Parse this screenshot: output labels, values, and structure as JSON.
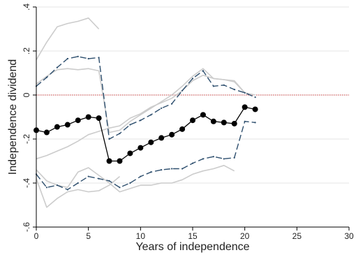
{
  "chart_data": {
    "type": "line",
    "title": "",
    "xlabel": "Years of independence",
    "ylabel": "Independence dividend",
    "xlim": [
      0,
      30
    ],
    "ylim": [
      -0.6,
      0.4
    ],
    "x_ticks": [
      0,
      5,
      10,
      15,
      20,
      25,
      30
    ],
    "y_ticks": [
      -0.6,
      -0.4,
      -0.2,
      0,
      0.2,
      0.4
    ],
    "x_tick_labels": [
      "0",
      "5",
      "10",
      "15",
      "20",
      "25",
      "30"
    ],
    "y_tick_labels": [
      "-.6",
      "-.4",
      "-.2",
      "0",
      ".2",
      ".4"
    ],
    "grid": true,
    "reference_line": {
      "y": 0,
      "color": "#d04040",
      "style": "dotted"
    },
    "series": [
      {
        "role": "point_estimate",
        "style": "solid-markers",
        "color": "#000000",
        "x": [
          0,
          1,
          2,
          3,
          4,
          5,
          6,
          7,
          8,
          9,
          10,
          11,
          12,
          13,
          14,
          15,
          16,
          17,
          18,
          19,
          20,
          21
        ],
        "y": [
          -0.16,
          -0.17,
          -0.145,
          -0.135,
          -0.115,
          -0.1,
          -0.105,
          -0.3,
          -0.3,
          -0.265,
          -0.24,
          -0.215,
          -0.195,
          -0.18,
          -0.155,
          -0.115,
          -0.09,
          -0.12,
          -0.125,
          -0.13,
          -0.055,
          -0.065
        ]
      },
      {
        "role": "upper_ci",
        "style": "dashed",
        "color": "#2e4f6e",
        "x": [
          0,
          1,
          2,
          3,
          4,
          5,
          6,
          7,
          8,
          9,
          10,
          11,
          12,
          13,
          14,
          15,
          16,
          17,
          18,
          19,
          20,
          21
        ],
        "y": [
          0.04,
          0.08,
          0.125,
          0.165,
          0.175,
          0.165,
          0.17,
          -0.2,
          -0.175,
          -0.135,
          -0.115,
          -0.09,
          -0.06,
          -0.04,
          0.02,
          0.075,
          0.11,
          0.04,
          0.045,
          0.025,
          0.01,
          -0.01
        ]
      },
      {
        "role": "lower_ci",
        "style": "dashed",
        "color": "#2e4f6e",
        "x": [
          0,
          1,
          2,
          3,
          4,
          5,
          6,
          7,
          8,
          9,
          10,
          11,
          12,
          13,
          14,
          15,
          16,
          17,
          18,
          19,
          20,
          21
        ],
        "y": [
          -0.36,
          -0.42,
          -0.41,
          -0.43,
          -0.4,
          -0.37,
          -0.38,
          -0.39,
          -0.42,
          -0.4,
          -0.37,
          -0.35,
          -0.34,
          -0.335,
          -0.335,
          -0.31,
          -0.29,
          -0.28,
          -0.29,
          -0.285,
          -0.12,
          -0.125
        ]
      },
      {
        "role": "background_upper_1",
        "style": "solid-light",
        "color": "#cccccc",
        "x": [
          0,
          1,
          2,
          3,
          4,
          5,
          6
        ],
        "y": [
          0.16,
          0.24,
          0.31,
          0.325,
          0.335,
          0.35,
          0.3
        ]
      },
      {
        "role": "background_upper_2",
        "style": "solid-light",
        "color": "#cccccc",
        "x": [
          0,
          1,
          2,
          3,
          4,
          5,
          6,
          7,
          8,
          9,
          10,
          11,
          12,
          13,
          14,
          15,
          16,
          17,
          18,
          19,
          20,
          21
        ],
        "y": [
          0.05,
          0.085,
          0.115,
          0.12,
          0.115,
          0.12,
          0.11,
          -0.17,
          -0.16,
          -0.12,
          -0.09,
          -0.06,
          -0.03,
          0,
          0.04,
          0.085,
          0.12,
          0.075,
          0.07,
          0.065,
          0.01,
          0.0
        ]
      },
      {
        "role": "background_middle",
        "style": "solid-light",
        "color": "#cccccc",
        "x": [
          0,
          1,
          2,
          3,
          4,
          5,
          6,
          7,
          8,
          9,
          10,
          11,
          12,
          13,
          14,
          15,
          16,
          17,
          18,
          19,
          20
        ],
        "y": [
          -0.29,
          -0.275,
          -0.255,
          -0.235,
          -0.21,
          -0.18,
          -0.165,
          -0.15,
          -0.14,
          -0.105,
          -0.085,
          -0.055,
          -0.035,
          -0.015,
          0.02,
          0.065,
          0.09,
          0.075,
          0.07,
          0.06,
          0.01
        ]
      },
      {
        "role": "background_lower_1",
        "style": "solid-light",
        "color": "#cccccc",
        "x": [
          0,
          1,
          2,
          3,
          4,
          5,
          6,
          7,
          8,
          9,
          10,
          11,
          12,
          13,
          14,
          15,
          16,
          17,
          18,
          19
        ],
        "y": [
          -0.34,
          -0.39,
          -0.41,
          -0.42,
          -0.35,
          -0.33,
          -0.365,
          -0.4,
          -0.44,
          -0.425,
          -0.41,
          -0.41,
          -0.4,
          -0.4,
          -0.385,
          -0.36,
          -0.345,
          -0.335,
          -0.32,
          -0.345
        ]
      },
      {
        "role": "background_lower_2",
        "style": "solid-light",
        "color": "#cccccc",
        "x": [
          0,
          1,
          2,
          3,
          4,
          5,
          6,
          7,
          8
        ],
        "y": [
          -0.38,
          -0.51,
          -0.47,
          -0.44,
          -0.43,
          -0.44,
          -0.435,
          -0.41,
          -0.37
        ]
      }
    ],
    "colors": {
      "point_estimate": "#000000",
      "confidence_interval": "#2e4f6e",
      "background_lines": "#cccccc",
      "grid": "#e6e6e6",
      "zero_line": "#d04040"
    }
  }
}
